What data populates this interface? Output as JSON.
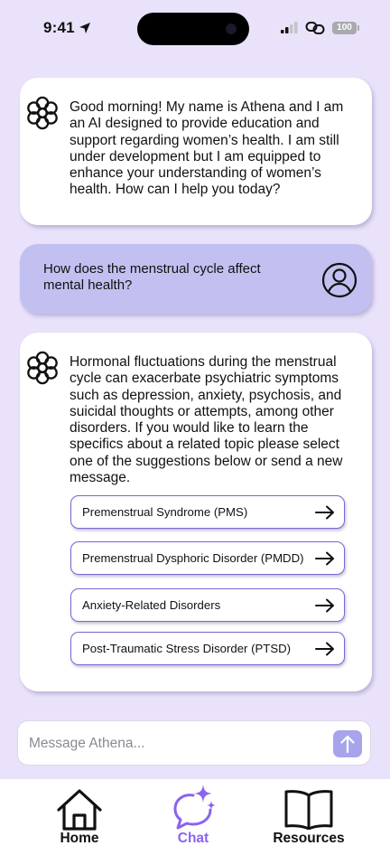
{
  "status_bar": {
    "time": "9:41",
    "battery": "100"
  },
  "messages": {
    "greeting": "Good morning!  My name is Athena and I am an AI designed to provide education and support regarding women’s health. I am still under development but I am equipped to enhance your understanding of women’s health.  How can I help you today?",
    "user_question": "How does the menstrual cycle affect mental health?",
    "answer": "Hormonal fluctuations during the menstrual cycle can exacerbate psychiatric symptoms such as depression, anxiety, psychosis, and suicidal thoughts or attempts, among other disorders. If you would like to learn the specifics about a related topic please select one of the suggestions below or send a new message."
  },
  "suggestions": [
    "Premenstrual Syndrome (PMS)",
    "Premenstrual Dysphoric Disorder (PMDD)",
    "Anxiety-Related Disorders",
    "Post-Traumatic Stress Disorder (PTSD)"
  ],
  "composer": {
    "placeholder": "Message Athena..."
  },
  "tab_bar": {
    "home_label": "Home",
    "chat_label": "Chat",
    "resources_label": "Resources",
    "active_color": "#8a63f0"
  },
  "colors": {
    "background": "#e9e2fa",
    "user_bubble": "#c1c0f0",
    "accent": "#7d64d6",
    "send_button": "#a7a4ec"
  },
  "icons": {
    "bot": "flower-icon",
    "user": "user-avatar-icon",
    "suggestion": "arrow-right-icon",
    "send": "arrow-up-icon",
    "home": "home-icon",
    "chat": "chat-sparkle-icon",
    "resources": "book-icon"
  }
}
